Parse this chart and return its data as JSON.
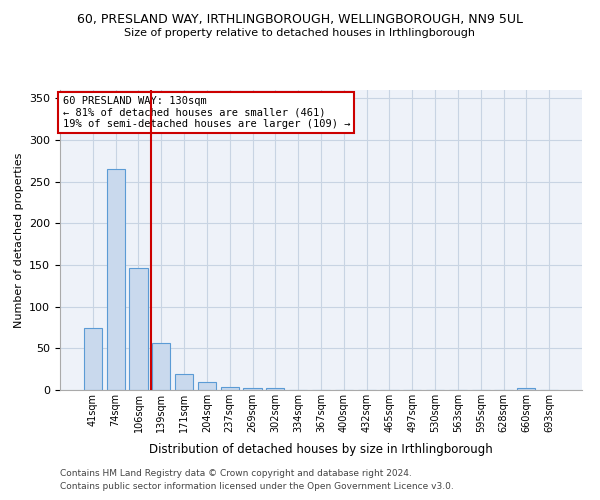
{
  "title1": "60, PRESLAND WAY, IRTHLINGBOROUGH, WELLINGBOROUGH, NN9 5UL",
  "title2": "Size of property relative to detached houses in Irthlingborough",
  "xlabel": "Distribution of detached houses by size in Irthlingborough",
  "ylabel": "Number of detached properties",
  "bar_labels": [
    "41sqm",
    "74sqm",
    "106sqm",
    "139sqm",
    "171sqm",
    "204sqm",
    "237sqm",
    "269sqm",
    "302sqm",
    "334sqm",
    "367sqm",
    "400sqm",
    "432sqm",
    "465sqm",
    "497sqm",
    "530sqm",
    "563sqm",
    "595sqm",
    "628sqm",
    "660sqm",
    "693sqm"
  ],
  "bar_values": [
    75,
    265,
    146,
    57,
    19,
    10,
    4,
    2,
    2,
    0,
    0,
    0,
    0,
    0,
    0,
    0,
    0,
    0,
    0,
    3,
    0
  ],
  "bar_color": "#c9d9ed",
  "bar_edge_color": "#5b9bd5",
  "grid_color": "#c8d4e3",
  "background_color": "#eef2f9",
  "vline_x": 2.57,
  "vline_color": "#cc0000",
  "annotation_text": "60 PRESLAND WAY: 130sqm\n← 81% of detached houses are smaller (461)\n19% of semi-detached houses are larger (109) →",
  "annotation_box_color": "#cc0000",
  "footer1": "Contains HM Land Registry data © Crown copyright and database right 2024.",
  "footer2": "Contains public sector information licensed under the Open Government Licence v3.0.",
  "ylim": [
    0,
    360
  ],
  "yticks": [
    0,
    50,
    100,
    150,
    200,
    250,
    300,
    350
  ]
}
